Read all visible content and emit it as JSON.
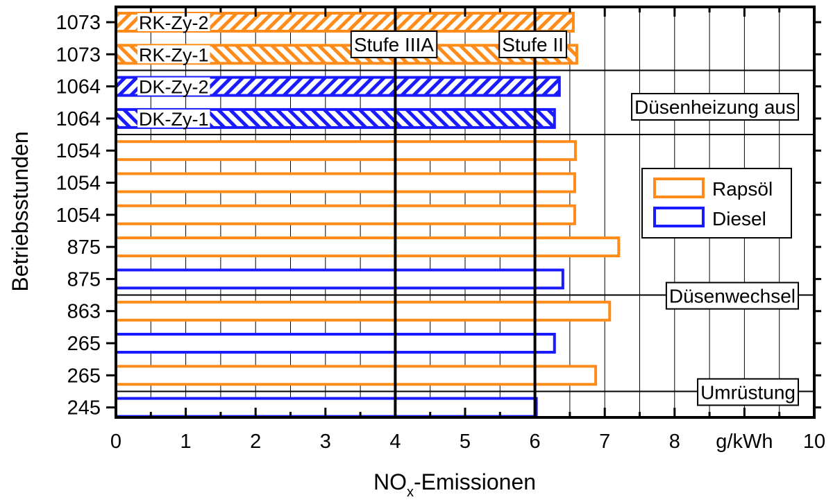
{
  "chart_data": {
    "type": "bar",
    "orientation": "horizontal",
    "xlabel_main": "NO",
    "xlabel_sub": "x",
    "xlabel_rest": "-Emissionen",
    "ylabel": "Betriebsstunden",
    "xlim": [
      0,
      10
    ],
    "x_ticks": [
      {
        "value": 0,
        "label": "0"
      },
      {
        "value": 1,
        "label": "1"
      },
      {
        "value": 2,
        "label": "2"
      },
      {
        "value": 3,
        "label": "3"
      },
      {
        "value": 4,
        "label": "4"
      },
      {
        "value": 5,
        "label": "5"
      },
      {
        "value": 6,
        "label": "6"
      },
      {
        "value": 7,
        "label": "7"
      },
      {
        "value": 8,
        "label": "8"
      },
      {
        "value": 9,
        "label": "g/kWh"
      },
      {
        "value": 10,
        "label": "10"
      }
    ],
    "grid": "vertical minor lines every 0.5",
    "colors": {
      "Rapsöl": "#ff8c1a",
      "Diesel": "#1a1aff"
    },
    "bars": [
      {
        "category": "1073",
        "value": 6.55,
        "fuel": "Rapsöl",
        "pattern": "hatch-forward",
        "label": "RK-Zy-2"
      },
      {
        "category": "1073",
        "value": 6.6,
        "fuel": "Rapsöl",
        "pattern": "hatch-back",
        "label": "RK-Zy-1"
      },
      {
        "category": "1064",
        "value": 6.35,
        "fuel": "Diesel",
        "pattern": "hatch-forward",
        "label": "DK-Zy-2"
      },
      {
        "category": "1064",
        "value": 6.28,
        "fuel": "Diesel",
        "pattern": "hatch-back",
        "label": "DK-Zy-1"
      },
      {
        "category": "1054",
        "value": 6.58,
        "fuel": "Rapsöl",
        "pattern": "none",
        "label": ""
      },
      {
        "category": "1054",
        "value": 6.57,
        "fuel": "Rapsöl",
        "pattern": "none",
        "label": ""
      },
      {
        "category": "1054",
        "value": 6.57,
        "fuel": "Rapsöl",
        "pattern": "none",
        "label": ""
      },
      {
        "category": "875",
        "value": 7.2,
        "fuel": "Rapsöl",
        "pattern": "none",
        "label": ""
      },
      {
        "category": "875",
        "value": 6.4,
        "fuel": "Diesel",
        "pattern": "none",
        "label": ""
      },
      {
        "category": "863",
        "value": 7.07,
        "fuel": "Rapsöl",
        "pattern": "none",
        "label": ""
      },
      {
        "category": "265",
        "value": 6.28,
        "fuel": "Diesel",
        "pattern": "none",
        "label": ""
      },
      {
        "category": "265",
        "value": 6.87,
        "fuel": "Rapsöl",
        "pattern": "none",
        "label": ""
      },
      {
        "category": "245",
        "value": 6.02,
        "fuel": "Diesel",
        "pattern": "none",
        "label": ""
      }
    ],
    "reference_lines": [
      {
        "x": 4,
        "label": "Stufe IIIA"
      },
      {
        "x": 6,
        "label": "Stufe II"
      }
    ],
    "separators": [
      {
        "after_bar": 1,
        "label": ""
      },
      {
        "after_bar": 3,
        "label": "Düsenheizung aus"
      },
      {
        "after_bar": 8,
        "label": "Düsenwechsel"
      },
      {
        "after_bar": 11,
        "label": "Umrüstung"
      }
    ],
    "legend": {
      "position": "right-middle",
      "entries": [
        {
          "name": "Rapsöl",
          "color": "#ff8c1a"
        },
        {
          "name": "Diesel",
          "color": "#1a1aff"
        }
      ]
    }
  }
}
